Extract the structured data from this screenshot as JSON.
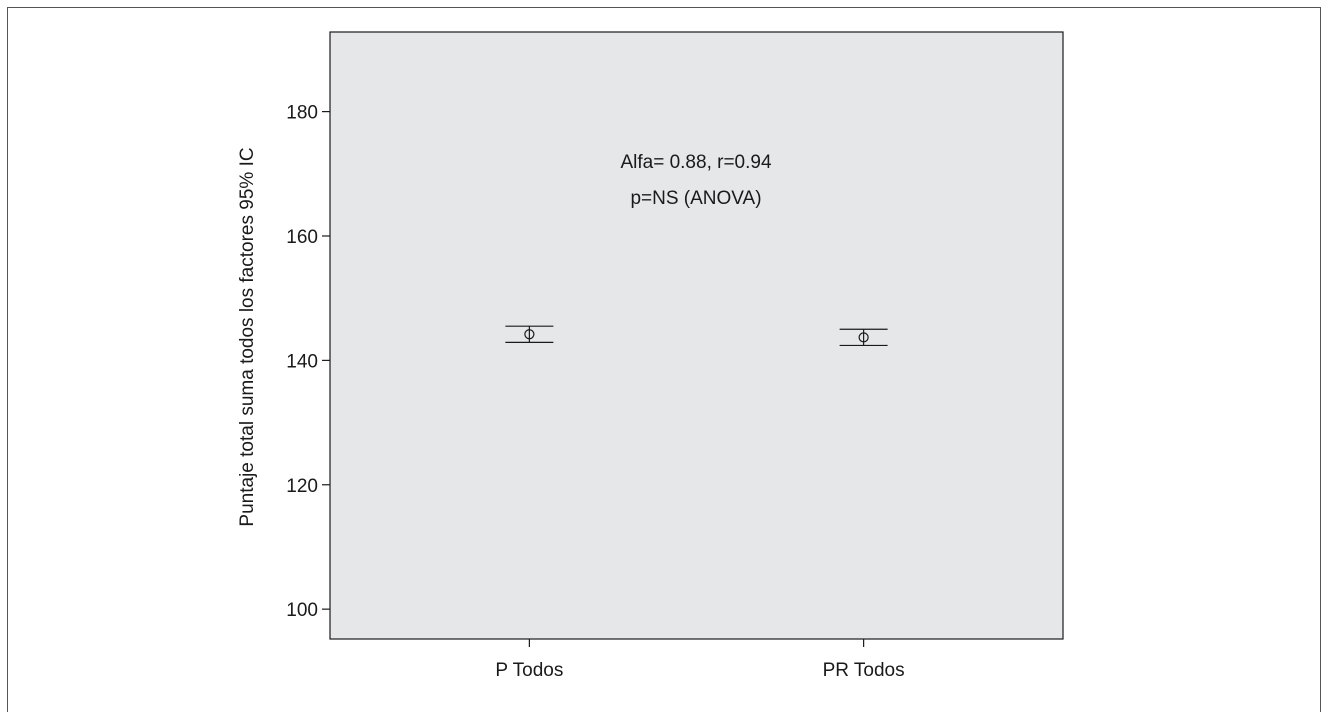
{
  "chart_data": {
    "type": "errorbar",
    "categories": [
      "P Todos",
      "PR Todos"
    ],
    "series": [
      {
        "mean": [
          144.2,
          143.7
        ],
        "ci_low": [
          142.9,
          142.4
        ],
        "ci_high": [
          145.5,
          145.0
        ]
      }
    ],
    "ylabel": "Puntaje total suma todos los factores 95% IC",
    "ylim": [
      95.2,
      192.8
    ],
    "yticks": [
      100,
      120,
      140,
      160,
      180
    ],
    "annotations": [
      "Alfa= 0.88, r=0.94",
      "p=NS (ANOVA)"
    ],
    "grid": false,
    "colors": {
      "plot_background": "#e6e7e9",
      "marks": "#1a1a1a"
    }
  }
}
